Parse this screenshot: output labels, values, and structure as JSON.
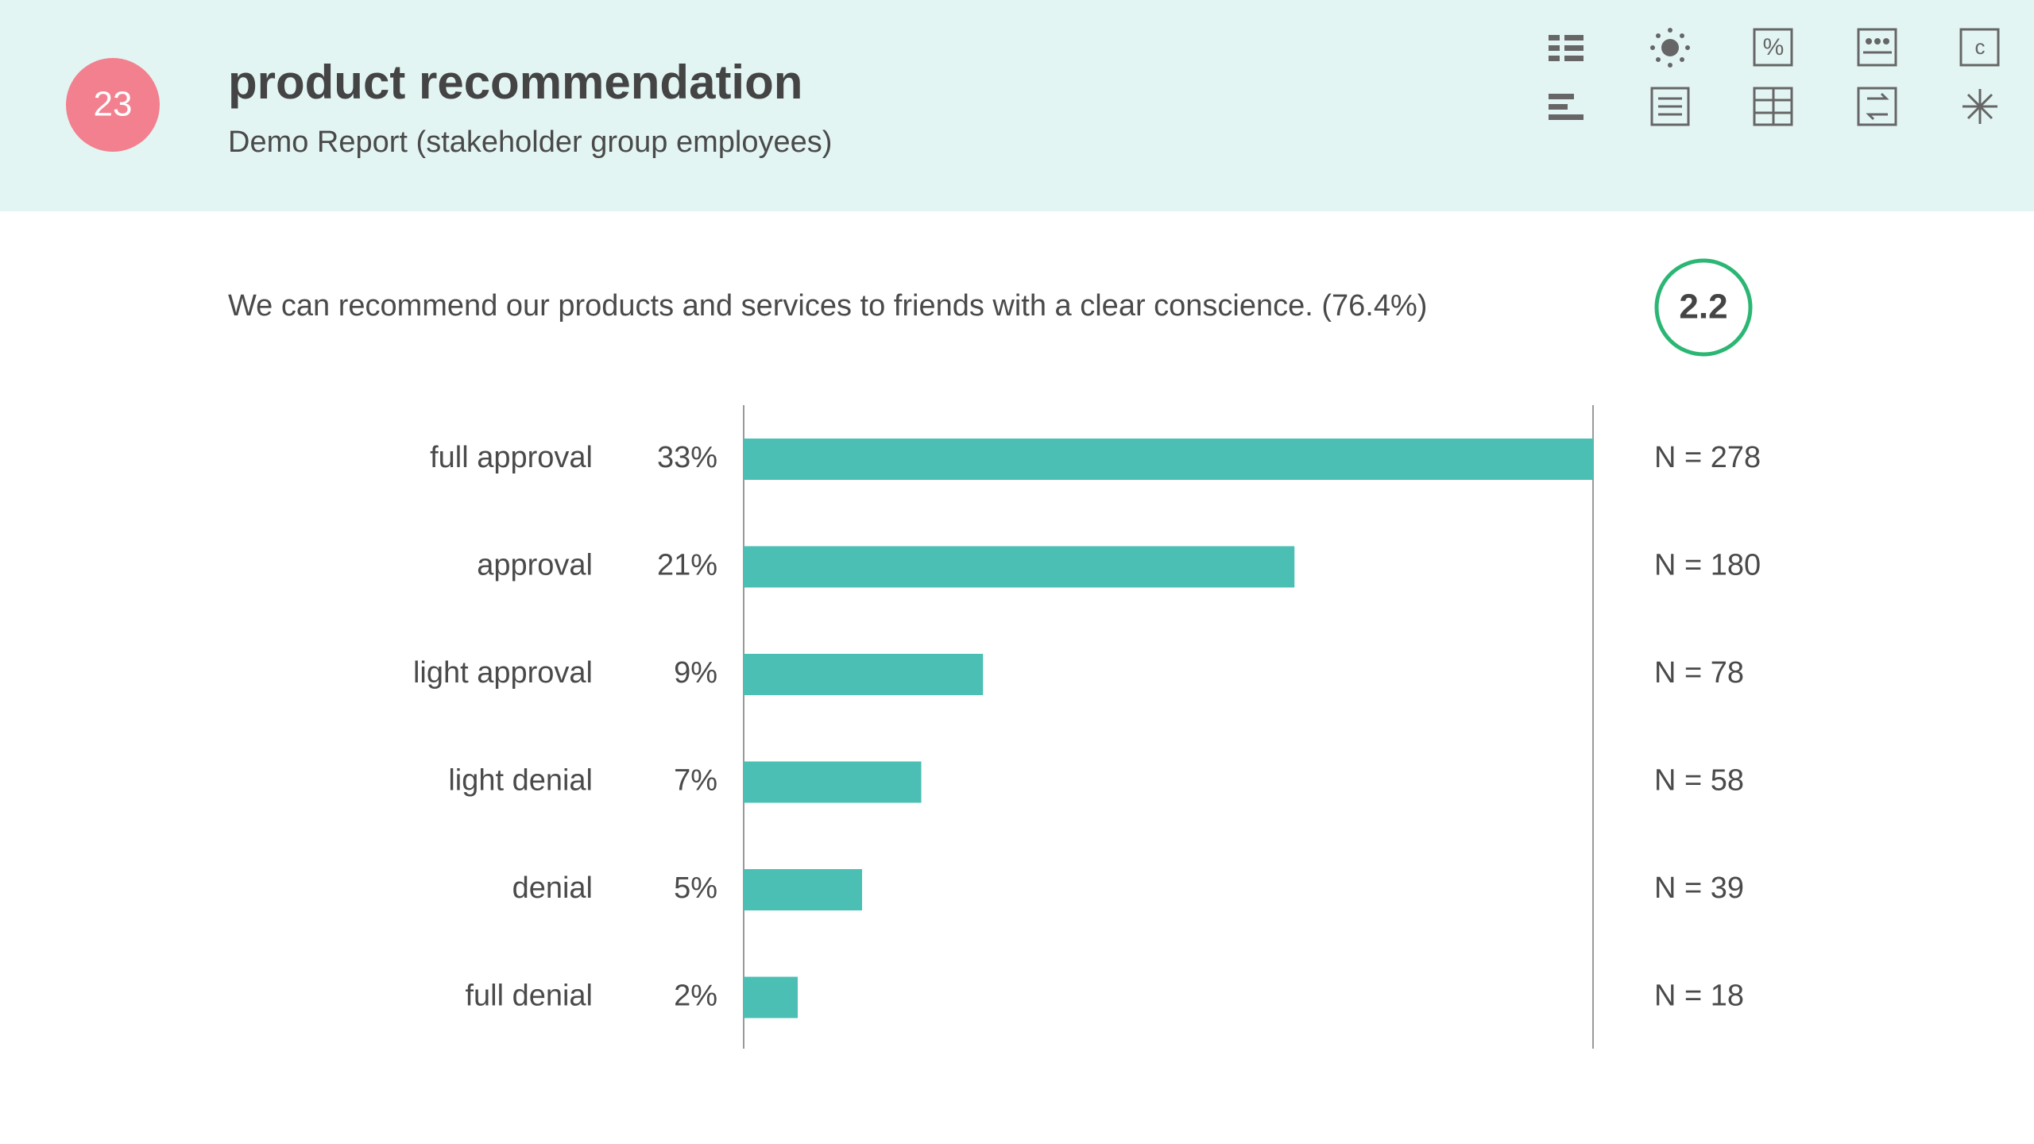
{
  "header": {
    "number": "23",
    "title": "product recommendation",
    "subtitle": "Demo Report (stakeholder group employees)"
  },
  "question": "We can recommend our products and services to friends with a clear conscience. (76.4%)",
  "score": "2.2",
  "chart_data": {
    "type": "bar",
    "orientation": "horizontal",
    "categories": [
      "full approval",
      "approval",
      "light approval",
      "light denial",
      "denial",
      "full denial"
    ],
    "values": [
      33,
      21.4,
      9.3,
      6.9,
      4.6,
      2.1
    ],
    "value_labels": [
      "33%",
      "21%",
      "9%",
      "7%",
      "5%",
      "2%"
    ],
    "count_labels": [
      "N = 278",
      "N = 180",
      "N = 78",
      "N = 58",
      "N = 39",
      "N = 18"
    ],
    "color": "#4bbfb4",
    "xlim": [
      0,
      33
    ]
  }
}
